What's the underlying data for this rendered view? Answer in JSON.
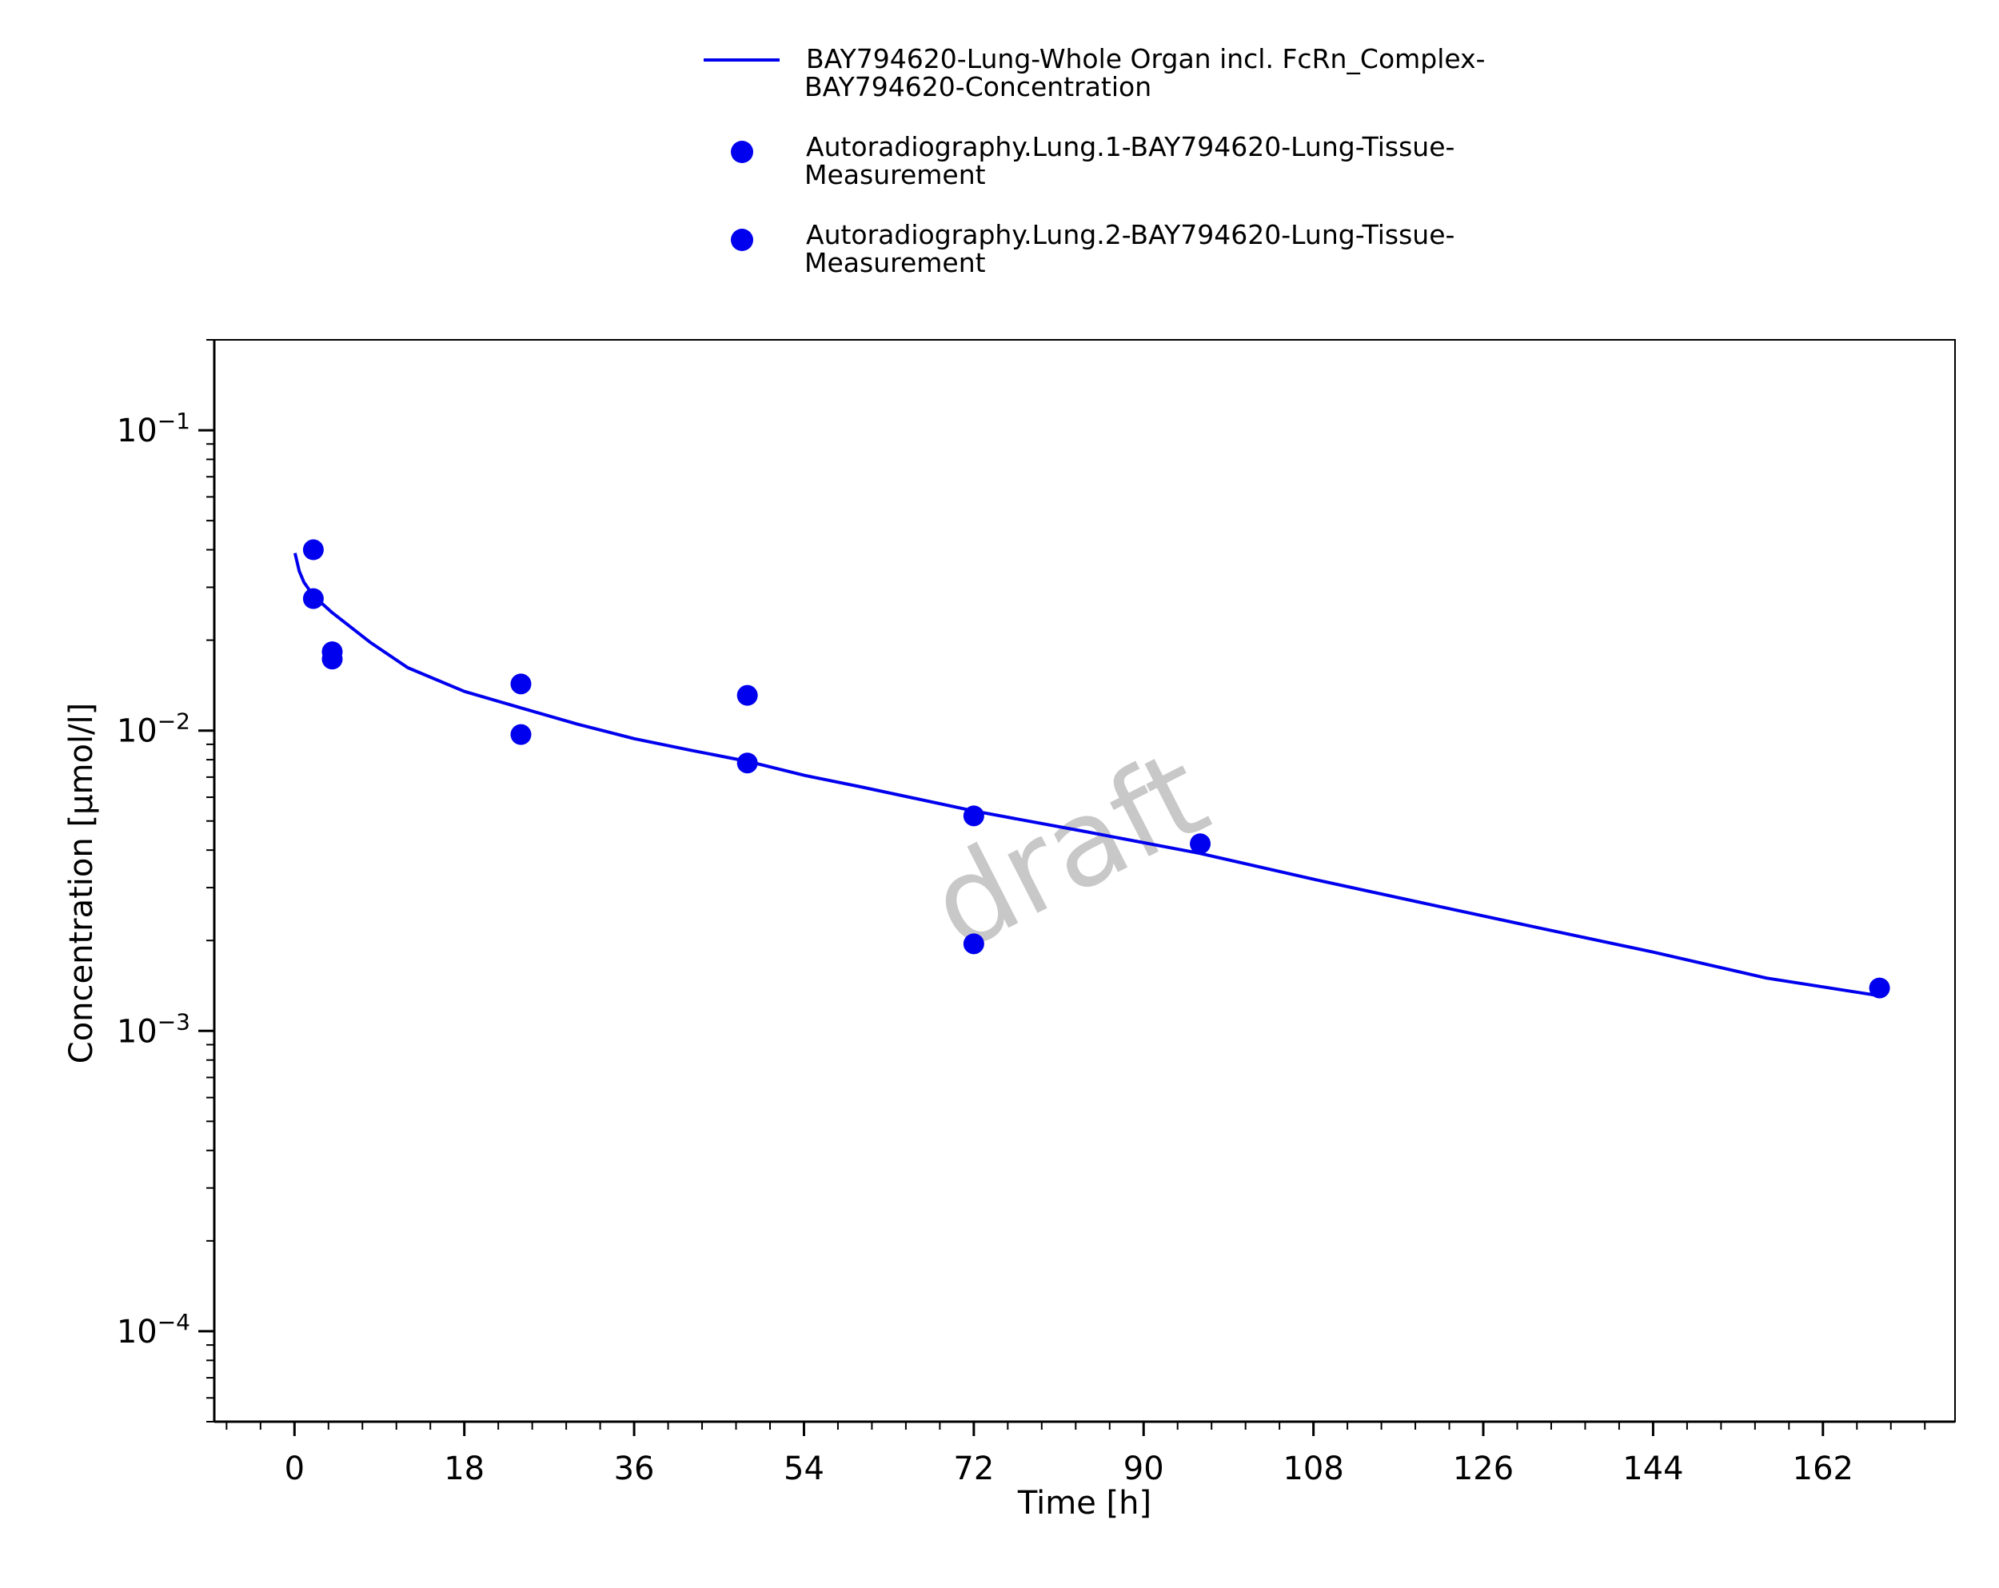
{
  "chart_data": {
    "type": "scatter",
    "xlabel": "Time [h]",
    "ylabel": "Concentration [µmol/l]",
    "xlim": [
      -8.5,
      176
    ],
    "ylim": [
      5e-05,
      0.2
    ],
    "yscale": "log",
    "x_ticks": [
      0,
      18,
      36,
      54,
      72,
      90,
      108,
      126,
      144,
      162
    ],
    "x_tick_labels": [
      "0",
      "18",
      "36",
      "54",
      "72",
      "90",
      "108",
      "126",
      "144",
      "162"
    ],
    "y_ticks": [
      {
        "value": 0.1,
        "base": "10",
        "exp": "−1"
      },
      {
        "value": 0.01,
        "base": "10",
        "exp": "−2"
      },
      {
        "value": 0.001,
        "base": "10",
        "exp": "−3"
      },
      {
        "value": 0.0001,
        "base": "10",
        "exp": "−4"
      }
    ],
    "legend_position": "top-center",
    "grid": false,
    "watermark": "draft",
    "series": [
      {
        "name": "BAY794620-Lung-Whole Organ incl. FcRn_Complex-BAY794620-Concentration",
        "legend_lines": [
          "BAY794620-Lung-Whole Organ incl. FcRn_Complex-",
          "BAY794620-Concentration"
        ],
        "kind": "line",
        "color": "#0000ee",
        "x": [
          0.05,
          0.5,
          1,
          2,
          4,
          8,
          12,
          18,
          24,
          30,
          36,
          42,
          48,
          54,
          60,
          72,
          84,
          96,
          108,
          120,
          132,
          144,
          156,
          168
        ],
        "y": [
          0.039,
          0.034,
          0.0312,
          0.0281,
          0.0247,
          0.0197,
          0.0162,
          0.0135,
          0.0119,
          0.0105,
          0.0094,
          0.0086,
          0.0079,
          0.0071,
          0.0065,
          0.0054,
          0.0046,
          0.0039,
          0.0032,
          0.00265,
          0.0022,
          0.00183,
          0.0015,
          0.00131
        ]
      },
      {
        "name": "Autoradiography.Lung.1-BAY794620-Lung-Tissue-Measurement",
        "legend_lines": [
          "Autoradiography.Lung.1-BAY794620-Lung-Tissue-",
          "Measurement"
        ],
        "kind": "scatter",
        "color": "#0000ee",
        "x": [
          2,
          4,
          24,
          48,
          72,
          96,
          168
        ],
        "y": [
          0.04,
          0.0183,
          0.0143,
          0.0131,
          0.0052,
          0.0042,
          0.00139
        ]
      },
      {
        "name": "Autoradiography.Lung.2-BAY794620-Lung-Tissue-Measurement",
        "legend_lines": [
          "Autoradiography.Lung.2-BAY794620-Lung-Tissue-",
          "Measurement"
        ],
        "kind": "scatter",
        "color": "#0000ee",
        "x": [
          2,
          4,
          24,
          48,
          72
        ],
        "y": [
          0.0275,
          0.0173,
          0.0097,
          0.0078,
          0.00195
        ]
      }
    ]
  }
}
